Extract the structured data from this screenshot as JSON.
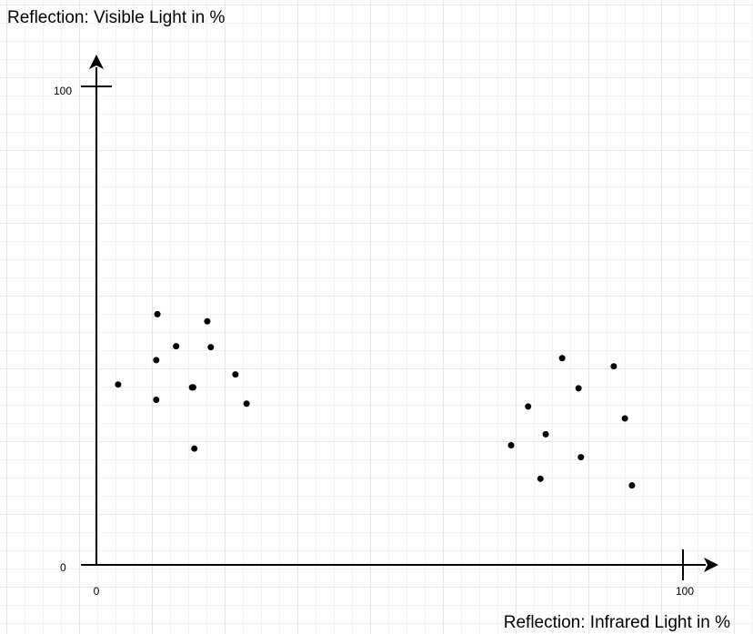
{
  "chart_data": {
    "type": "scatter",
    "title": "",
    "ylabel": "Reflection: Visible Light in %",
    "xlabel": "Reflection: Infrared Light in %",
    "xlim": [
      0,
      100
    ],
    "ylim": [
      0,
      100
    ],
    "x_ticks": [
      "0",
      "100"
    ],
    "y_ticks": [
      "0",
      "100"
    ],
    "grid": true,
    "series": [
      {
        "points": [
          {
            "x": 3.7,
            "y": 37.7
          },
          {
            "x": 10.4,
            "y": 52.4
          },
          {
            "x": 10.2,
            "y": 42.8
          },
          {
            "x": 10.2,
            "y": 34.5
          },
          {
            "x": 13.6,
            "y": 45.7
          },
          {
            "x": 16.3,
            "y": 37.1
          },
          {
            "x": 16.5,
            "y": 37.1
          },
          {
            "x": 16.7,
            "y": 24.3
          },
          {
            "x": 18.9,
            "y": 50.9
          },
          {
            "x": 19.5,
            "y": 45.5
          },
          {
            "x": 23.7,
            "y": 39.8
          },
          {
            "x": 25.6,
            "y": 33.7
          },
          {
            "x": 70.7,
            "y": 25.0
          },
          {
            "x": 73.6,
            "y": 33.1
          },
          {
            "x": 75.7,
            "y": 18.0
          },
          {
            "x": 76.6,
            "y": 27.3
          },
          {
            "x": 79.4,
            "y": 43.2
          },
          {
            "x": 82.2,
            "y": 36.9
          },
          {
            "x": 82.6,
            "y": 22.5
          },
          {
            "x": 88.2,
            "y": 41.5
          },
          {
            "x": 90.1,
            "y": 30.6
          },
          {
            "x": 91.3,
            "y": 16.6
          }
        ]
      }
    ]
  }
}
